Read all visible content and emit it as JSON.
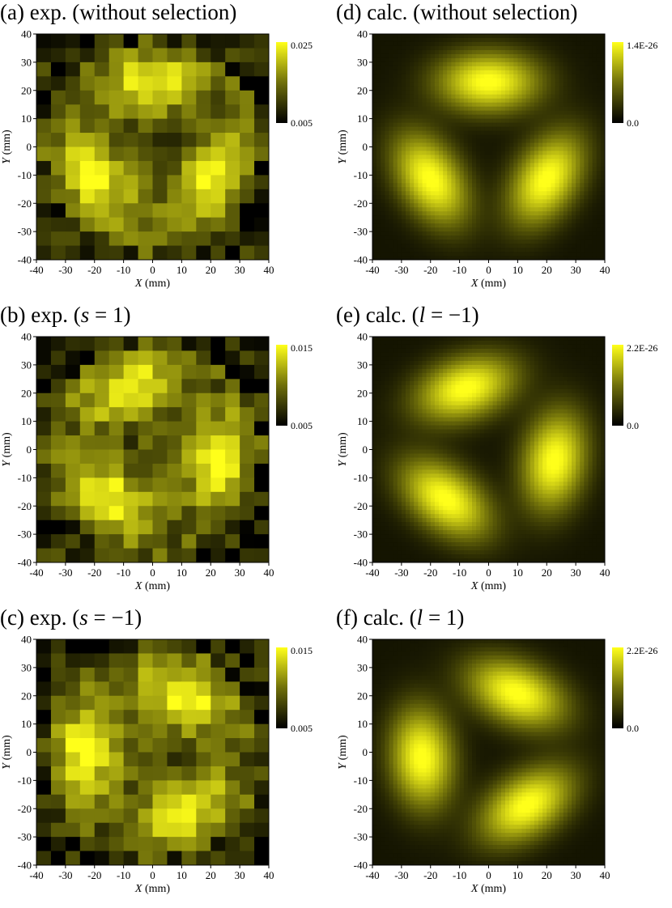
{
  "chart_data": [
    {
      "id": "a",
      "type": "heatmap",
      "title": "(a) exp. (without selection)",
      "title_parts": [
        {
          "t": "(a) exp. (without selection)",
          "i": false
        }
      ],
      "xlabel": "X (mm)",
      "ylabel": "Y (mm)",
      "xlim": [
        -40,
        40
      ],
      "ylim": [
        -40,
        40
      ],
      "xticks": [
        "-40",
        "-30",
        "-20",
        "-10",
        "0",
        "10",
        "20",
        "30",
        "40"
      ],
      "yticks": [
        "40",
        "30",
        "20",
        "10",
        "0",
        "-10",
        "-20",
        "-30",
        "-40"
      ],
      "colorbar": {
        "max": 0.025,
        "min": 0.005,
        "max_label": "0.025",
        "min_label": "0.005",
        "colors": [
          "#000000",
          "#ffff1a"
        ]
      },
      "grid": "experimental 16x16",
      "pattern": {
        "kind": "three_lobes",
        "rotation_deg": 90
      },
      "noise": true,
      "seed": 11
    },
    {
      "id": "d",
      "type": "heatmap",
      "title": "(d) calc. (without selection)",
      "title_parts": [
        {
          "t": "(d) calc. (without selection)",
          "i": false
        }
      ],
      "xlabel": "X (mm)",
      "ylabel": "Y (mm)",
      "xlim": [
        -40,
        40
      ],
      "ylim": [
        -40,
        40
      ],
      "xticks": [
        "-40",
        "-30",
        "-20",
        "-10",
        "0",
        "10",
        "20",
        "30",
        "40"
      ],
      "yticks": [
        "40",
        "30",
        "20",
        "10",
        "0",
        "-10",
        "-20",
        "-30",
        "-40"
      ],
      "colorbar": {
        "max": 1.4e-26,
        "min": 0.0,
        "max_label": "1.4E-26",
        "min_label": "0.0",
        "colors": [
          "#000000",
          "#ffff1a"
        ]
      },
      "grid": "smooth",
      "pattern": {
        "kind": "three_lobes",
        "rotation_deg": 90
      },
      "noise": false,
      "seed": 0
    },
    {
      "id": "b",
      "type": "heatmap",
      "title": "(b) exp. (s = 1)",
      "title_parts": [
        {
          "t": "(b) exp. (",
          "i": false
        },
        {
          "t": "s",
          "i": true
        },
        {
          "t": " = 1)",
          "i": false
        }
      ],
      "xlabel": "X (mm)",
      "ylabel": "Y (mm)",
      "xlim": [
        -40,
        40
      ],
      "ylim": [
        -40,
        40
      ],
      "xticks": [
        "-40",
        "-30",
        "-20",
        "-10",
        "0",
        "10",
        "20",
        "30",
        "40"
      ],
      "yticks": [
        "40",
        "30",
        "20",
        "10",
        "0",
        "-10",
        "-20",
        "-30",
        "-40"
      ],
      "colorbar": {
        "max": 0.015,
        "min": 0.005,
        "max_label": "0.015",
        "min_label": "0.005",
        "colors": [
          "#000000",
          "#ffff1a"
        ]
      },
      "grid": "experimental 16x16",
      "pattern": {
        "kind": "three_lobes",
        "rotation_deg": 110
      },
      "noise": true,
      "seed": 23
    },
    {
      "id": "e",
      "type": "heatmap",
      "title": "(e) calc. (l = −1)",
      "title_parts": [
        {
          "t": "(e) calc. (",
          "i": false
        },
        {
          "t": "l",
          "i": true
        },
        {
          "t": " = −1)",
          "i": false
        }
      ],
      "xlabel": "X (mm)",
      "ylabel": "Y (mm)",
      "xlim": [
        -40,
        40
      ],
      "ylim": [
        -40,
        40
      ],
      "xticks": [
        "-40",
        "-30",
        "-20",
        "-10",
        "0",
        "10",
        "20",
        "30",
        "40"
      ],
      "yticks": [
        "40",
        "30",
        "20",
        "10",
        "0",
        "-10",
        "-20",
        "-30",
        "-40"
      ],
      "colorbar": {
        "max": 2.2e-26,
        "min": 0.0,
        "max_label": "2.2E-26",
        "min_label": "0.0",
        "colors": [
          "#000000",
          "#ffff1a"
        ]
      },
      "grid": "smooth",
      "pattern": {
        "kind": "three_lobes",
        "rotation_deg": 110
      },
      "noise": false,
      "seed": 0
    },
    {
      "id": "c",
      "type": "heatmap",
      "title": "(c) exp. (s = −1)",
      "title_parts": [
        {
          "t": "(c) exp. (",
          "i": false
        },
        {
          "t": "s",
          "i": true
        },
        {
          "t": " = −1)",
          "i": false
        }
      ],
      "xlabel": "X (mm)",
      "ylabel": "Y (mm)",
      "xlim": [
        -40,
        40
      ],
      "ylim": [
        -40,
        40
      ],
      "xticks": [
        "-40",
        "-30",
        "-20",
        "-10",
        "0",
        "10",
        "20",
        "30",
        "40"
      ],
      "yticks": [
        "40",
        "30",
        "20",
        "10",
        "0",
        "-10",
        "-20",
        "-30",
        "-40"
      ],
      "colorbar": {
        "max": 0.015,
        "min": 0.005,
        "max_label": "0.015",
        "min_label": "0.005",
        "colors": [
          "#000000",
          "#ffff1a"
        ]
      },
      "grid": "experimental 16x16",
      "pattern": {
        "kind": "three_lobes",
        "rotation_deg": 60
      },
      "noise": true,
      "seed": 37
    },
    {
      "id": "f",
      "type": "heatmap",
      "title": "(f) calc. (l = 1)",
      "title_parts": [
        {
          "t": "(f) calc. (",
          "i": false
        },
        {
          "t": "l",
          "i": true
        },
        {
          "t": " = 1)",
          "i": false
        }
      ],
      "xlabel": "X (mm)",
      "ylabel": "Y (mm)",
      "xlim": [
        -40,
        40
      ],
      "ylim": [
        -40,
        40
      ],
      "xticks": [
        "-40",
        "-30",
        "-20",
        "-10",
        "0",
        "10",
        "20",
        "30",
        "40"
      ],
      "yticks": [
        "40",
        "30",
        "20",
        "10",
        "0",
        "-10",
        "-20",
        "-30",
        "-40"
      ],
      "colorbar": {
        "max": 2.2e-26,
        "min": 0.0,
        "max_label": "2.2E-26",
        "min_label": "0.0",
        "colors": [
          "#000000",
          "#ffff1a"
        ]
      },
      "grid": "smooth",
      "pattern": {
        "kind": "three_lobes",
        "rotation_deg": 65
      },
      "noise": false,
      "seed": 0
    }
  ]
}
